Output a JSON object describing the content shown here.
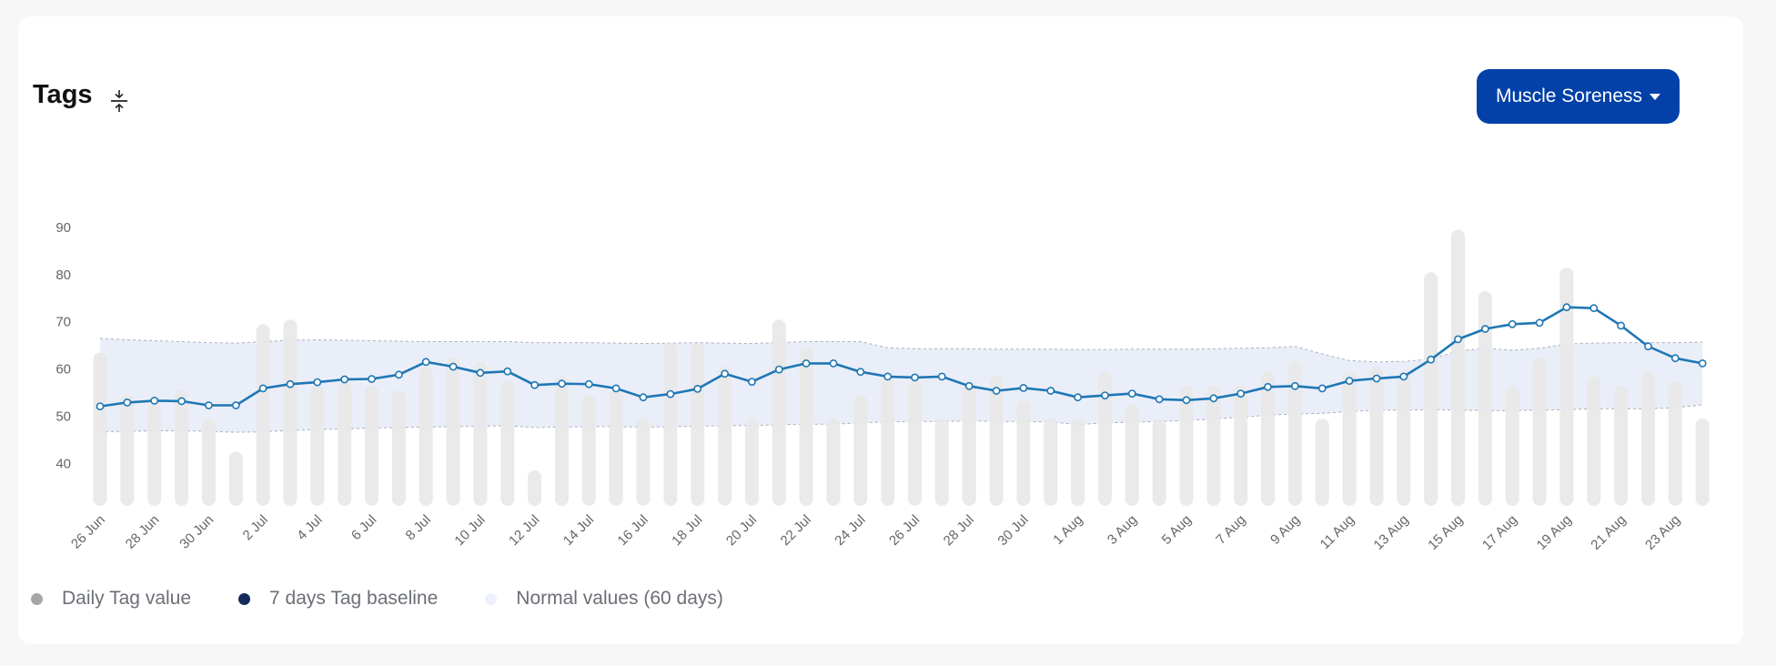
{
  "card": {
    "title": "Tags",
    "dropdown": {
      "label": "Muscle Soreness"
    }
  },
  "legend": {
    "items": [
      {
        "label": "Daily Tag value",
        "color": "#a6a6a6"
      },
      {
        "label": "7 days Tag baseline",
        "color": "#142a5c"
      },
      {
        "label": "Normal values (60 days)",
        "color": "#eef1fb"
      }
    ]
  },
  "colors": {
    "bar": "#e8e8e8",
    "line": "#1f77b4",
    "band": "#eaeef9",
    "band_edge": "#a9b0bc",
    "accent": "#0341a8"
  },
  "chart_data": {
    "type": "bar",
    "ylim": [
      31,
      95
    ],
    "yticks": [
      40,
      50,
      60,
      70,
      80,
      90
    ],
    "grid": false,
    "legend_position": "bottom-left",
    "x_tick_labels": [
      "26 Jun",
      "28 Jun",
      "30 Jun",
      "2 Jul",
      "4 Jul",
      "6 Jul",
      "8 Jul",
      "10 Jul",
      "12 Jul",
      "14 Jul",
      "16 Jul",
      "18 Jul",
      "20 Jul",
      "22 Jul",
      "24 Jul",
      "26 Jul",
      "28 Jul",
      "30 Jul",
      "1 Aug",
      "3 Aug",
      "5 Aug",
      "7 Aug",
      "9 Aug",
      "11 Aug",
      "13 Aug",
      "15 Aug",
      "17 Aug",
      "19 Aug",
      "21 Aug",
      "23 Aug"
    ],
    "series": [
      {
        "name": "Daily Tag value",
        "type": "bar",
        "values": [
          63.5,
          54.5,
          53,
          55.5,
          49.5,
          42.5,
          69.5,
          70.5,
          56.5,
          57.5,
          56.5,
          55.5,
          60.5,
          62.5,
          61.5,
          57.5,
          38.5,
          58.5,
          54.5,
          55.5,
          49.5,
          65.5,
          65.5,
          60.5,
          49.5,
          70.5,
          64.5,
          49.5,
          54.5,
          58.5,
          57.5,
          49.5,
          57.5,
          58.5,
          53.5,
          49.5,
          49.5,
          59.5,
          52.5,
          49.5,
          56.5,
          56.5,
          56.5,
          59.5,
          61.5,
          49.5,
          59.5,
          60.5,
          59.5,
          80.5,
          89.5,
          76.5,
          56.5,
          62.5,
          81.5,
          58.5,
          56.5,
          59.5,
          57.5,
          49.5
        ]
      },
      {
        "name": "7 days Tag baseline",
        "type": "line",
        "values": [
          52.1,
          52.9,
          53.3,
          53.2,
          52.3,
          52.3,
          55.9,
          56.8,
          57.2,
          57.8,
          57.9,
          58.8,
          61.5,
          60.5,
          59.2,
          59.5,
          56.6,
          56.9,
          56.8,
          55.9,
          54.0,
          54.7,
          55.8,
          59.0,
          57.3,
          59.9,
          61.2,
          61.2,
          59.4,
          58.4,
          58.2,
          58.4,
          56.4,
          55.4,
          56.0,
          55.4,
          54.0,
          54.4,
          54.8,
          53.6,
          53.4,
          53.8,
          54.8,
          56.2,
          56.4,
          55.9,
          57.5,
          58.0,
          58.4,
          62.0,
          66.3,
          68.5,
          69.5,
          69.8,
          73.1,
          72.9,
          69.2,
          64.8,
          62.3,
          61.2
        ]
      },
      {
        "name": "Normal values (60 days)",
        "type": "band",
        "upper": [
          66.5,
          66.2,
          66.0,
          65.8,
          65.6,
          65.5,
          65.8,
          66.1,
          66.2,
          66.1,
          66.0,
          65.9,
          65.8,
          65.8,
          65.8,
          65.8,
          65.6,
          65.6,
          65.6,
          65.5,
          65.4,
          65.5,
          65.6,
          65.5,
          65.4,
          65.6,
          65.8,
          65.8,
          65.8,
          64.5,
          64.3,
          64.3,
          64.3,
          64.2,
          64.2,
          64.2,
          64.1,
          64.1,
          64.2,
          64.2,
          64.2,
          64.3,
          64.4,
          64.5,
          64.8,
          63.2,
          61.8,
          61.5,
          61.6,
          62.1,
          63.8,
          64.4,
          64.0,
          64.4,
          65.3,
          65.5,
          65.6,
          65.6,
          65.6,
          65.7
        ],
        "lower": [
          46.7,
          46.8,
          46.9,
          46.9,
          46.8,
          46.6,
          46.7,
          47.0,
          47.2,
          47.3,
          47.5,
          47.6,
          47.7,
          47.8,
          47.9,
          48.0,
          47.6,
          47.7,
          47.8,
          47.8,
          47.7,
          47.8,
          47.9,
          48.0,
          48.0,
          48.2,
          48.3,
          48.3,
          48.6,
          48.8,
          48.9,
          48.9,
          49.0,
          48.9,
          48.9,
          48.8,
          48.2,
          48.6,
          48.7,
          48.9,
          49.1,
          49.4,
          49.8,
          50.2,
          50.5,
          50.6,
          51.0,
          51.3,
          51.3,
          51.4,
          51.3,
          51.2,
          51.2,
          51.3,
          51.4,
          51.6,
          51.6,
          51.6,
          51.8,
          52.4
        ]
      }
    ]
  }
}
